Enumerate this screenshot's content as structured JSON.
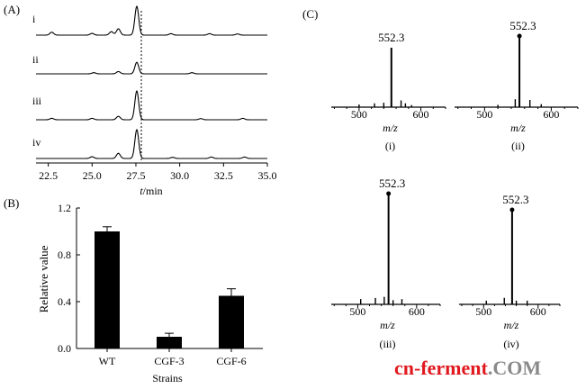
{
  "figure": {
    "panel_a_label": "(A)",
    "panel_b_label": "(B)",
    "panel_c_label": "(C)"
  },
  "watermark": {
    "part1": "cn-ferment",
    "part2": ".COM",
    "color1": "#e0191f",
    "color2": "#8a8a8a"
  },
  "chart_data": [
    {
      "type": "line",
      "panel": "A",
      "xlabel_italic": "t",
      "xlabel_rest": "/min",
      "x_ticks": [
        "22.5",
        "25.0",
        "27.5",
        "30.0",
        "32.5",
        "35.0"
      ],
      "xlim": [
        21.8,
        35.0
      ],
      "dashed_reference_x": 27.5,
      "series": [
        {
          "name": "i",
          "peaks": [
            [
              22.7,
              0.1
            ],
            [
              25.0,
              0.06
            ],
            [
              26.1,
              0.12
            ],
            [
              26.5,
              0.22
            ],
            [
              27.55,
              1.0
            ],
            [
              29.5,
              0.05
            ],
            [
              31.7,
              0.05
            ],
            [
              33.3,
              0.04
            ]
          ]
        },
        {
          "name": "ii",
          "peaks": [
            [
              25.1,
              0.04
            ],
            [
              26.5,
              0.08
            ],
            [
              27.55,
              0.4
            ],
            [
              30.7,
              0.04
            ]
          ]
        },
        {
          "name": "iii",
          "peaks": [
            [
              22.7,
              0.05
            ],
            [
              25.0,
              0.05
            ],
            [
              26.5,
              0.12
            ],
            [
              27.55,
              1.0
            ],
            [
              31.2,
              0.04
            ],
            [
              33.6,
              0.05
            ]
          ]
        },
        {
          "name": "iv",
          "peaks": [
            [
              25.0,
              0.06
            ],
            [
              26.5,
              0.18
            ],
            [
              27.55,
              1.0
            ],
            [
              29.6,
              0.04
            ],
            [
              31.8,
              0.05
            ],
            [
              33.7,
              0.05
            ]
          ]
        }
      ]
    },
    {
      "type": "bar",
      "panel": "B",
      "categories": [
        "WT",
        "CGF-3",
        "CGF-6"
      ],
      "values": [
        1.0,
        0.1,
        0.45
      ],
      "errors": [
        0.04,
        0.03,
        0.06
      ],
      "ylabel": "Relative value",
      "xlabel": "Strains",
      "ylim": [
        0.0,
        1.2
      ],
      "y_ticks": [
        "0.0",
        "0.4",
        "0.8",
        "1.2"
      ],
      "bar_color": "#000000"
    },
    {
      "type": "bar",
      "panel": "C",
      "subplots": [
        {
          "label": "(i)",
          "main_peak": 552.3,
          "main_label": "552.3",
          "marker": false,
          "peaks": [
            [
              500,
              0.03
            ],
            [
              525,
              0.05
            ],
            [
              540,
              0.06
            ],
            [
              552.3,
              1.0
            ],
            [
              568,
              0.1
            ],
            [
              575,
              0.05
            ],
            [
              585,
              0.02
            ]
          ]
        },
        {
          "label": "(ii)",
          "main_peak": 552.3,
          "main_label": "552.3",
          "marker": true,
          "peaks": [
            [
              520,
              0.02
            ],
            [
              546,
              0.1
            ],
            [
              552.3,
              1.0
            ],
            [
              568,
              0.09
            ],
            [
              585,
              0.03
            ]
          ]
        },
        {
          "label": "(iii)",
          "main_peak": 552.3,
          "main_label": "552.3",
          "marker": true,
          "peaks": [
            [
              505,
              0.04
            ],
            [
              530,
              0.05
            ],
            [
              545,
              0.06
            ],
            [
              552.3,
              1.0
            ],
            [
              560,
              0.03
            ],
            [
              575,
              0.04
            ]
          ]
        },
        {
          "label": "(iv)",
          "main_peak": 552.3,
          "main_label": "552.3",
          "marker": true,
          "peaks": [
            [
              505,
              0.03
            ],
            [
              538,
              0.06
            ],
            [
              552.3,
              1.0
            ],
            [
              560,
              0.03
            ],
            [
              580,
              0.03
            ]
          ]
        }
      ],
      "xlabel": "m/z",
      "x_ticks": [
        "500",
        "600"
      ],
      "xlim": [
        455,
        640
      ]
    }
  ]
}
